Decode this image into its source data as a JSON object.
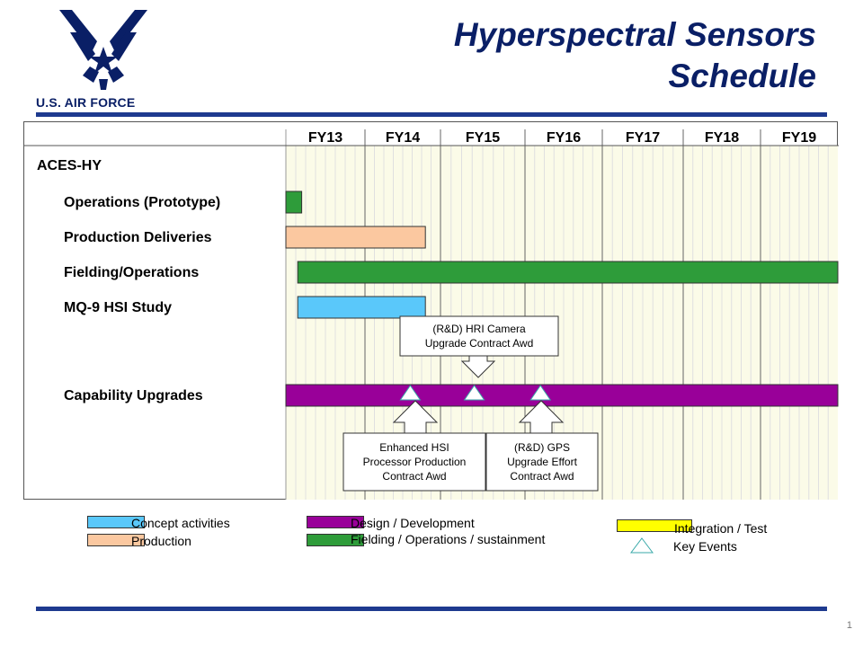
{
  "header": {
    "title_line1": "Hyperspectral Sensors",
    "title_line2": "Schedule",
    "logo_text": "U.S. AIR FORCE",
    "title_color": "#0a1f66"
  },
  "page_number": "1",
  "schedule": {
    "fiscal_years": [
      "FY13",
      "FY14",
      "FY15",
      "FY16",
      "FY17",
      "FY18",
      "FY19"
    ],
    "program": "ACES-HY",
    "rows": [
      {
        "label": "Operations (Prototype)"
      },
      {
        "label": "Production Deliveries"
      },
      {
        "label": "Fielding/Operations"
      },
      {
        "label": "MQ-9 HSI Study"
      },
      {
        "label": "Capability Upgrades"
      }
    ],
    "callouts": [
      {
        "lines": [
          "(R&D) HRI  Camera",
          "Upgrade Contract Awd"
        ]
      },
      {
        "lines": [
          "Enhanced HSI",
          "Processor Production",
          "Contract Awd"
        ]
      },
      {
        "lines": [
          "(R&D) GPS",
          "Upgrade Effort",
          "Contract Awd"
        ]
      }
    ]
  },
  "chart_data": {
    "type": "gantt",
    "time_axis": [
      "FY13",
      "FY14",
      "FY15",
      "FY16",
      "FY17",
      "FY18",
      "FY19"
    ],
    "bars": [
      {
        "row": "Operations (Prototype)",
        "start": 0.0,
        "end": 0.2,
        "category": "Fielding / Operations / sustainment"
      },
      {
        "row": "Production Deliveries",
        "start": 0.0,
        "end": 1.8,
        "category": "Production"
      },
      {
        "row": "Fielding/Operations",
        "start": 0.15,
        "end": 7.0,
        "category": "Fielding / Operations / sustainment"
      },
      {
        "row": "MQ-9 HSI Study",
        "start": 0.15,
        "end": 1.8,
        "category": "Concept activities"
      },
      {
        "row": "Capability Upgrades",
        "start": 0.0,
        "end": 7.0,
        "category": "Design / Development"
      }
    ],
    "events": [
      {
        "row": "Capability Upgrades",
        "at": 1.6,
        "callout": "Enhanced HSI Processor Production Contract Awd"
      },
      {
        "row": "Capability Upgrades",
        "at": 2.4,
        "callout": "(R&D) HRI  Camera Upgrade Contract Awd"
      },
      {
        "row": "Capability Upgrades",
        "at": 3.2,
        "callout": "(R&D) GPS Upgrade Effort Contract Awd"
      }
    ]
  },
  "legend": {
    "items": [
      {
        "label": "Concept activities",
        "color": "#5ac8fa"
      },
      {
        "label": "Production",
        "color": "#fbc8a0"
      },
      {
        "label": "Design / Development",
        "color": "#990099"
      },
      {
        "label": "Fielding / Operations / sustainment",
        "color": "#2e9c3a"
      },
      {
        "label": "Integration  / Test",
        "color": "#ffff00"
      },
      {
        "label": "Key Events",
        "color": "#3aa9a9"
      }
    ]
  }
}
